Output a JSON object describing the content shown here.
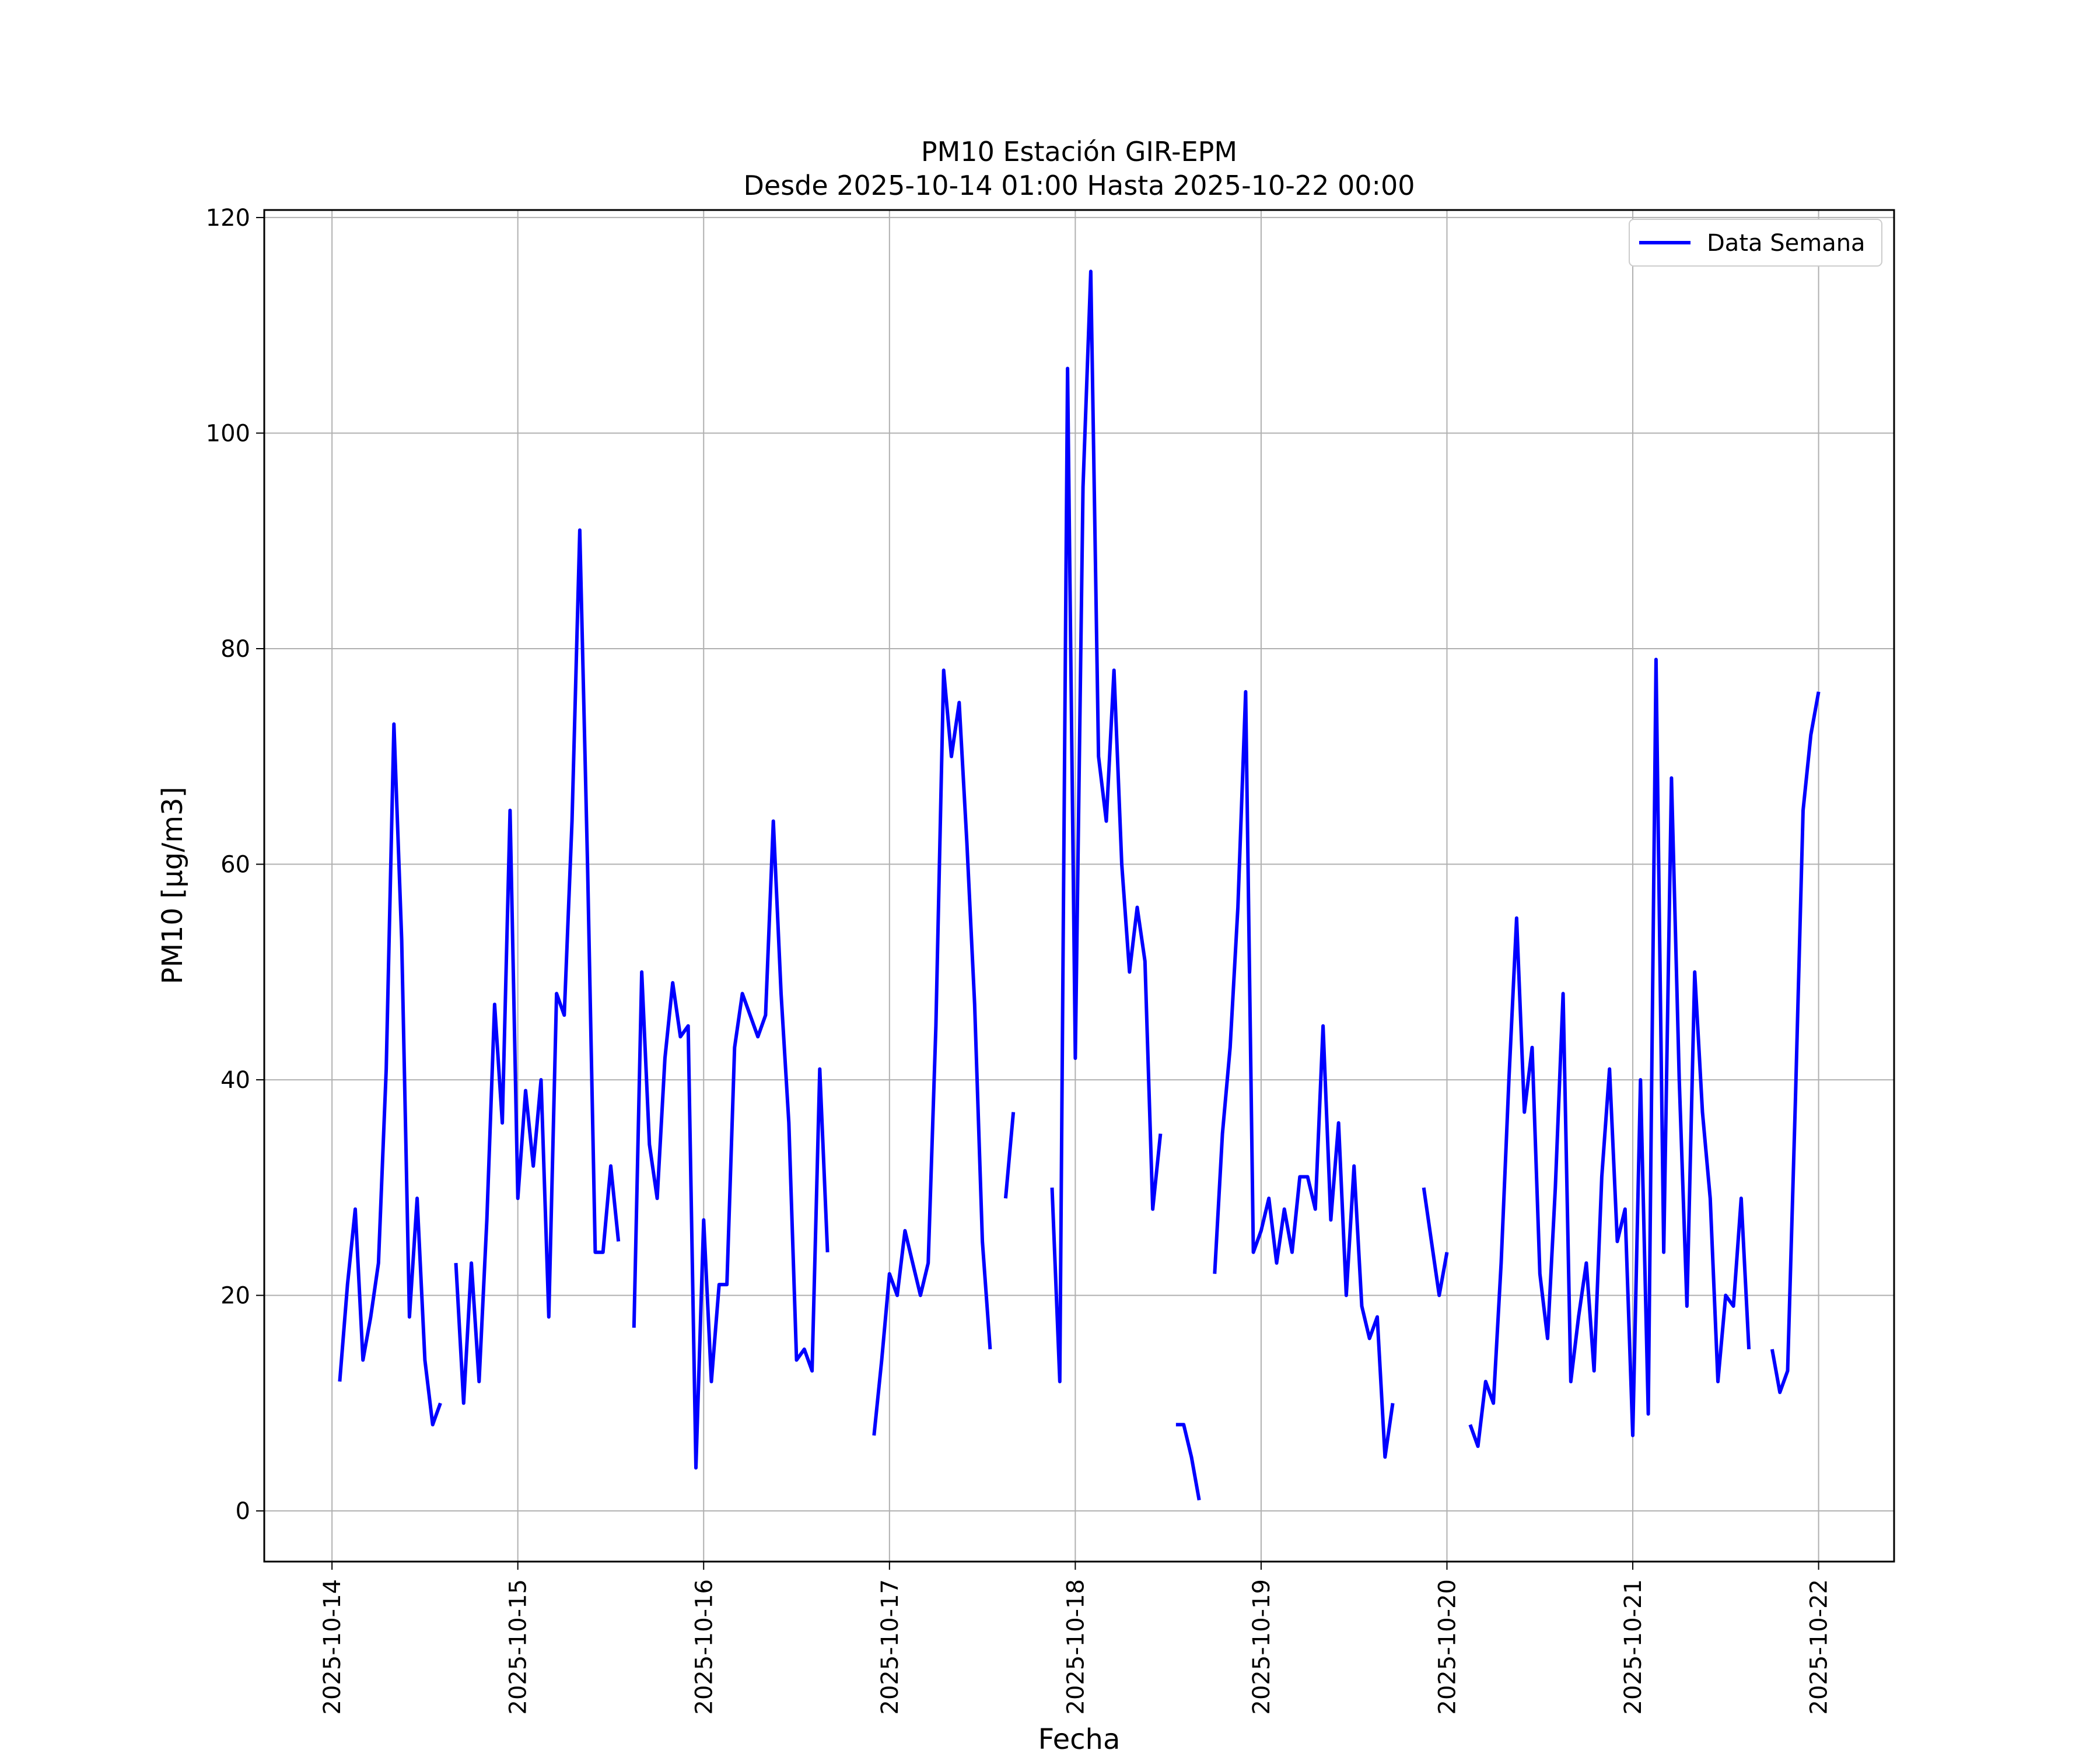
{
  "chart_data": {
    "type": "line",
    "title": "PM10 Estación GIR-EPM",
    "subtitle": "Desde 2025-10-14 01:00 Hasta 2025-10-22 00:00",
    "xlabel": "Fecha",
    "ylabel": "PM10 [μg/m3]",
    "x_ticks": [
      "2025-10-14",
      "2025-10-15",
      "2025-10-16",
      "2025-10-17",
      "2025-10-18",
      "2025-10-19",
      "2025-10-20",
      "2025-10-21",
      "2025-10-22"
    ],
    "y_ticks": [
      0,
      20,
      40,
      60,
      80,
      100,
      120
    ],
    "xlim": [
      "2025-10-13 15:15",
      "2025-10-22 09:45"
    ],
    "ylim": [
      -4.7,
      120.7
    ],
    "grid": true,
    "legend_position": "top-right",
    "colors": {
      "series": "#0000ff",
      "grid": "#b0b0b0",
      "axes": "#000000"
    },
    "series": [
      {
        "name": "Data Semana",
        "points": [
          [
            "2025-10-14 01:00",
            12
          ],
          [
            "2025-10-14 02:00",
            21
          ],
          [
            "2025-10-14 03:00",
            28
          ],
          [
            "2025-10-14 04:00",
            14
          ],
          [
            "2025-10-14 05:00",
            18
          ],
          [
            "2025-10-14 06:00",
            23
          ],
          [
            "2025-10-14 07:00",
            41
          ],
          [
            "2025-10-14 08:00",
            73
          ],
          [
            "2025-10-14 09:00",
            53
          ],
          [
            "2025-10-14 10:00",
            18
          ],
          [
            "2025-10-14 11:00",
            29
          ],
          [
            "2025-10-14 12:00",
            14
          ],
          [
            "2025-10-14 13:00",
            8
          ],
          [
            "2025-10-14 14:00",
            10
          ],
          [
            "2025-10-14 15:00",
            null
          ],
          [
            "2025-10-14 16:00",
            23
          ],
          [
            "2025-10-14 17:00",
            10
          ],
          [
            "2025-10-14 18:00",
            23
          ],
          [
            "2025-10-14 19:00",
            12
          ],
          [
            "2025-10-14 20:00",
            27
          ],
          [
            "2025-10-14 21:00",
            47
          ],
          [
            "2025-10-14 22:00",
            36
          ],
          [
            "2025-10-14 23:00",
            65
          ],
          [
            "2025-10-15 00:00",
            29
          ],
          [
            "2025-10-15 01:00",
            39
          ],
          [
            "2025-10-15 02:00",
            32
          ],
          [
            "2025-10-15 03:00",
            40
          ],
          [
            "2025-10-15 04:00",
            18
          ],
          [
            "2025-10-15 05:00",
            48
          ],
          [
            "2025-10-15 06:00",
            46
          ],
          [
            "2025-10-15 07:00",
            64
          ],
          [
            "2025-10-15 08:00",
            91
          ],
          [
            "2025-10-15 09:00",
            60
          ],
          [
            "2025-10-15 10:00",
            24
          ],
          [
            "2025-10-15 11:00",
            24
          ],
          [
            "2025-10-15 12:00",
            32
          ],
          [
            "2025-10-15 13:00",
            25
          ],
          [
            "2025-10-15 14:00",
            null
          ],
          [
            "2025-10-15 15:00",
            17
          ],
          [
            "2025-10-15 16:00",
            50
          ],
          [
            "2025-10-15 17:00",
            34
          ],
          [
            "2025-10-15 18:00",
            29
          ],
          [
            "2025-10-15 19:00",
            42
          ],
          [
            "2025-10-15 20:00",
            49
          ],
          [
            "2025-10-15 21:00",
            44
          ],
          [
            "2025-10-15 22:00",
            45
          ],
          [
            "2025-10-15 23:00",
            4
          ],
          [
            "2025-10-16 00:00",
            27
          ],
          [
            "2025-10-16 01:00",
            12
          ],
          [
            "2025-10-16 02:00",
            21
          ],
          [
            "2025-10-16 03:00",
            21
          ],
          [
            "2025-10-16 04:00",
            43
          ],
          [
            "2025-10-16 05:00",
            48
          ],
          [
            "2025-10-16 06:00",
            46
          ],
          [
            "2025-10-16 07:00",
            44
          ],
          [
            "2025-10-16 08:00",
            46
          ],
          [
            "2025-10-16 09:00",
            64
          ],
          [
            "2025-10-16 10:00",
            48
          ],
          [
            "2025-10-16 11:00",
            36
          ],
          [
            "2025-10-16 12:00",
            14
          ],
          [
            "2025-10-16 13:00",
            15
          ],
          [
            "2025-10-16 14:00",
            13
          ],
          [
            "2025-10-16 15:00",
            41
          ],
          [
            "2025-10-16 16:00",
            24
          ],
          [
            "2025-10-16 17:00",
            null
          ],
          [
            "2025-10-16 22:00",
            7
          ],
          [
            "2025-10-16 23:00",
            14
          ],
          [
            "2025-10-17 00:00",
            22
          ],
          [
            "2025-10-17 01:00",
            20
          ],
          [
            "2025-10-17 02:00",
            26
          ],
          [
            "2025-10-17 03:00",
            23
          ],
          [
            "2025-10-17 04:00",
            20
          ],
          [
            "2025-10-17 05:00",
            23
          ],
          [
            "2025-10-17 06:00",
            45
          ],
          [
            "2025-10-17 07:00",
            78
          ],
          [
            "2025-10-17 08:00",
            70
          ],
          [
            "2025-10-17 09:00",
            75
          ],
          [
            "2025-10-17 10:00",
            62
          ],
          [
            "2025-10-17 11:00",
            47
          ],
          [
            "2025-10-17 12:00",
            25
          ],
          [
            "2025-10-17 13:00",
            15
          ],
          [
            "2025-10-17 14:00",
            null
          ],
          [
            "2025-10-17 15:00",
            29
          ],
          [
            "2025-10-17 16:00",
            37
          ],
          [
            "2025-10-17 17:00",
            null
          ],
          [
            "2025-10-17 21:00",
            30
          ],
          [
            "2025-10-17 22:00",
            12
          ],
          [
            "2025-10-17 23:00",
            106
          ],
          [
            "2025-10-18 00:00",
            42
          ],
          [
            "2025-10-18 01:00",
            95
          ],
          [
            "2025-10-18 02:00",
            115
          ],
          [
            "2025-10-18 03:00",
            70
          ],
          [
            "2025-10-18 04:00",
            64
          ],
          [
            "2025-10-18 05:00",
            78
          ],
          [
            "2025-10-18 06:00",
            60
          ],
          [
            "2025-10-18 07:00",
            50
          ],
          [
            "2025-10-18 08:00",
            56
          ],
          [
            "2025-10-18 09:00",
            51
          ],
          [
            "2025-10-18 10:00",
            28
          ],
          [
            "2025-10-18 11:00",
            35
          ],
          [
            "2025-10-18 12:00",
            null
          ],
          [
            "2025-10-18 13:00",
            8
          ],
          [
            "2025-10-18 14:00",
            8
          ],
          [
            "2025-10-18 15:00",
            5
          ],
          [
            "2025-10-18 16:00",
            1
          ],
          [
            "2025-10-18 17:00",
            null
          ],
          [
            "2025-10-18 18:00",
            22
          ],
          [
            "2025-10-18 19:00",
            35
          ],
          [
            "2025-10-18 20:00",
            43
          ],
          [
            "2025-10-18 21:00",
            56
          ],
          [
            "2025-10-18 22:00",
            76
          ],
          [
            "2025-10-18 23:00",
            24
          ],
          [
            "2025-10-19 00:00",
            26
          ],
          [
            "2025-10-19 01:00",
            29
          ],
          [
            "2025-10-19 02:00",
            23
          ],
          [
            "2025-10-19 03:00",
            28
          ],
          [
            "2025-10-19 04:00",
            24
          ],
          [
            "2025-10-19 05:00",
            31
          ],
          [
            "2025-10-19 06:00",
            31
          ],
          [
            "2025-10-19 07:00",
            28
          ],
          [
            "2025-10-19 08:00",
            45
          ],
          [
            "2025-10-19 09:00",
            27
          ],
          [
            "2025-10-19 10:00",
            36
          ],
          [
            "2025-10-19 11:00",
            20
          ],
          [
            "2025-10-19 12:00",
            32
          ],
          [
            "2025-10-19 13:00",
            19
          ],
          [
            "2025-10-19 14:00",
            16
          ],
          [
            "2025-10-19 15:00",
            18
          ],
          [
            "2025-10-19 16:00",
            5
          ],
          [
            "2025-10-19 17:00",
            10
          ],
          [
            "2025-10-19 18:00",
            null
          ],
          [
            "2025-10-19 21:00",
            30
          ],
          [
            "2025-10-19 22:00",
            25
          ],
          [
            "2025-10-19 23:00",
            20
          ],
          [
            "2025-10-20 00:00",
            24
          ],
          [
            "2025-10-20 01:00",
            null
          ],
          [
            "2025-10-20 03:00",
            8
          ],
          [
            "2025-10-20 04:00",
            6
          ],
          [
            "2025-10-20 05:00",
            12
          ],
          [
            "2025-10-20 06:00",
            10
          ],
          [
            "2025-10-20 07:00",
            23
          ],
          [
            "2025-10-20 08:00",
            40
          ],
          [
            "2025-10-20 09:00",
            55
          ],
          [
            "2025-10-20 10:00",
            37
          ],
          [
            "2025-10-20 11:00",
            43
          ],
          [
            "2025-10-20 12:00",
            22
          ],
          [
            "2025-10-20 13:00",
            16
          ],
          [
            "2025-10-20 14:00",
            30
          ],
          [
            "2025-10-20 15:00",
            48
          ],
          [
            "2025-10-20 16:00",
            12
          ],
          [
            "2025-10-20 17:00",
            18
          ],
          [
            "2025-10-20 18:00",
            23
          ],
          [
            "2025-10-20 19:00",
            13
          ],
          [
            "2025-10-20 20:00",
            31
          ],
          [
            "2025-10-20 21:00",
            41
          ],
          [
            "2025-10-20 22:00",
            25
          ],
          [
            "2025-10-20 23:00",
            28
          ],
          [
            "2025-10-21 00:00",
            7
          ],
          [
            "2025-10-21 01:00",
            40
          ],
          [
            "2025-10-21 02:00",
            9
          ],
          [
            "2025-10-21 03:00",
            79
          ],
          [
            "2025-10-21 04:00",
            24
          ],
          [
            "2025-10-21 05:00",
            68
          ],
          [
            "2025-10-21 06:00",
            40
          ],
          [
            "2025-10-21 07:00",
            19
          ],
          [
            "2025-10-21 08:00",
            50
          ],
          [
            "2025-10-21 09:00",
            37
          ],
          [
            "2025-10-21 10:00",
            29
          ],
          [
            "2025-10-21 11:00",
            12
          ],
          [
            "2025-10-21 12:00",
            20
          ],
          [
            "2025-10-21 13:00",
            19
          ],
          [
            "2025-10-21 14:00",
            29
          ],
          [
            "2025-10-21 15:00",
            15
          ],
          [
            "2025-10-21 16:00",
            null
          ],
          [
            "2025-10-21 18:00",
            15
          ],
          [
            "2025-10-21 19:00",
            11
          ],
          [
            "2025-10-21 20:00",
            13
          ],
          [
            "2025-10-21 21:00",
            38
          ],
          [
            "2025-10-21 22:00",
            65
          ],
          [
            "2025-10-21 23:00",
            72
          ],
          [
            "2025-10-22 00:00",
            76
          ]
        ]
      }
    ]
  }
}
